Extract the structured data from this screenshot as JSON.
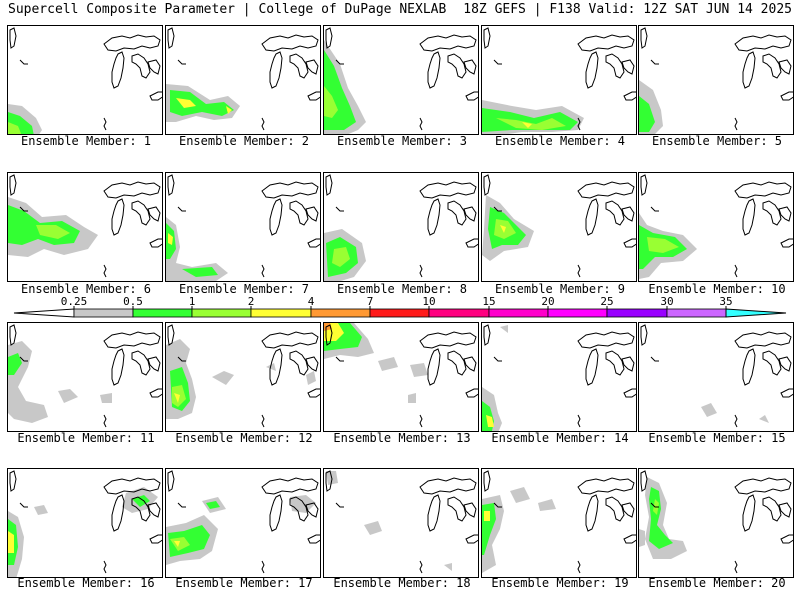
{
  "header": {
    "left_title": "Supercell Composite Parameter | College of DuPage NEXLAB",
    "right_title": "18Z GEFS | F138 Valid: 12Z SAT JUN 14 2025"
  },
  "legend": {
    "thresholds": [
      "0.25",
      "0.5",
      "1",
      "2",
      "4",
      "7",
      "10",
      "15",
      "20",
      "25",
      "30",
      "35"
    ],
    "colors": [
      "#c8c8c8",
      "#33ff33",
      "#99ff33",
      "#ffff33",
      "#ff9933",
      "#ff1a1a",
      "#ff0080",
      "#ff00cc",
      "#ff00ff",
      "#9900ff",
      "#cc66ff",
      "#33ffff"
    ]
  },
  "members": [
    {
      "label": "Ensemble Member: 1"
    },
    {
      "label": "Ensemble Member: 2"
    },
    {
      "label": "Ensemble Member: 3"
    },
    {
      "label": "Ensemble Member: 4"
    },
    {
      "label": "Ensemble Member: 5"
    },
    {
      "label": "Ensemble Member: 6"
    },
    {
      "label": "Ensemble Member: 7"
    },
    {
      "label": "Ensemble Member: 8"
    },
    {
      "label": "Ensemble Member: 9"
    },
    {
      "label": "Ensemble Member: 10"
    },
    {
      "label": "Ensemble Member: 11"
    },
    {
      "label": "Ensemble Member: 12"
    },
    {
      "label": "Ensemble Member: 13"
    },
    {
      "label": "Ensemble Member: 14"
    },
    {
      "label": "Ensemble Member: 15"
    },
    {
      "label": "Ensemble Member: 16"
    },
    {
      "label": "Ensemble Member: 17"
    },
    {
      "label": "Ensemble Member: 18"
    },
    {
      "label": "Ensemble Member: 19"
    },
    {
      "label": "Ensemble Member: 20"
    }
  ]
}
